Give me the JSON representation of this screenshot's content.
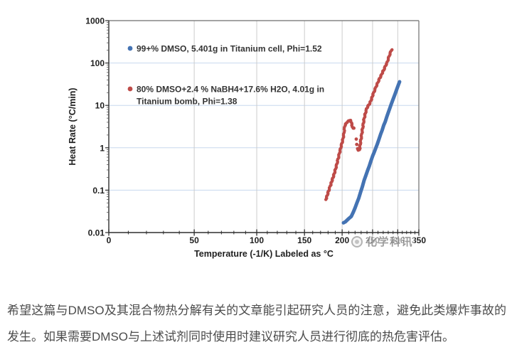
{
  "watermark": {
    "text": "化学科讯"
  },
  "caption": {
    "text": "希望这篇与DMSO及其混合物热分解有关的文章能引起研究人员的注意，避免此类爆炸事故的发生。如果需要DMSO与上述试剂同时使用时建议研究人员进行彻底的热危害评估。"
  },
  "chart_data": {
    "type": "scatter",
    "title": "",
    "xlabel": "Temperature (-1/K) Labeled as °C",
    "ylabel": "Heat Rate (°C/min)",
    "x_scale": "reciprocal-kelvin (-1/K), labeled in °C",
    "y_scale": "log10",
    "xlim": [
      0,
      350
    ],
    "ylim": [
      0.01,
      1000
    ],
    "x_major_ticks": [
      0,
      50,
      100,
      150,
      200,
      250,
      300,
      350
    ],
    "x_minor_step": 10,
    "y_tick_labels": [
      "1000",
      "100",
      "10",
      "1",
      "0.1",
      "0.01"
    ],
    "y_tick_values": [
      1000,
      100,
      10,
      1,
      0.1,
      0.01
    ],
    "grid": {
      "horizontal_color": "#c7d8ee",
      "vertical_color": "#cccccc"
    },
    "legend": [
      {
        "label": "99+% DMSO, 5.401g in Titanium cell, Phi=1.52",
        "color": "#4473B3"
      },
      {
        "line1": "80% DMSO+2.4 % NaBH4+17.6% H2O, 4.01g in",
        "line2": "Titanium bomb, Phi=1.38",
        "color": "#BE4B48"
      }
    ],
    "series": [
      {
        "name": "99+% DMSO, 5.401g in Titanium cell, Phi=1.52",
        "color": "#4473B3",
        "style": "thick-line",
        "points": [
          [
            202,
            0.017
          ],
          [
            205,
            0.018
          ],
          [
            208,
            0.02
          ],
          [
            211,
            0.022
          ],
          [
            214,
            0.024
          ],
          [
            217,
            0.03
          ],
          [
            220,
            0.038
          ],
          [
            223,
            0.05
          ],
          [
            226,
            0.065
          ],
          [
            229,
            0.089
          ],
          [
            232,
            0.12
          ],
          [
            235,
            0.17
          ],
          [
            238,
            0.22
          ],
          [
            241,
            0.29
          ],
          [
            244,
            0.37
          ],
          [
            247,
            0.49
          ],
          [
            250,
            0.64
          ],
          [
            253,
            0.79
          ],
          [
            256,
            1.0
          ],
          [
            259,
            1.25
          ],
          [
            262,
            1.6
          ],
          [
            265,
            2.1
          ],
          [
            268,
            2.6
          ],
          [
            271,
            3.4
          ],
          [
            274,
            4.1
          ],
          [
            277,
            5.3
          ],
          [
            280,
            6.7
          ],
          [
            283,
            8.4
          ],
          [
            286,
            10.6
          ],
          [
            290,
            13.9
          ],
          [
            294,
            18.3
          ],
          [
            298,
            24.1
          ],
          [
            302,
            31.7
          ],
          [
            304,
            36
          ]
        ]
      },
      {
        "name": "80% DMSO+2.4 % NaBH4+17.6% H2O, 4.01g in Titanium bomb, Phi=1.38",
        "color": "#BE4B48",
        "style": "dots",
        "segments": [
          {
            "dense": true,
            "points": [
              [
                177,
                0.06
              ],
              [
                178.5,
                0.072
              ],
              [
                180,
                0.088
              ],
              [
                181.5,
                0.105
              ],
              [
                183,
                0.125
              ],
              [
                184.5,
                0.15
              ],
              [
                186,
                0.18
              ],
              [
                187.5,
                0.215
              ],
              [
                189,
                0.26
              ],
              [
                190.5,
                0.32
              ],
              [
                192,
                0.4
              ],
              [
                193.5,
                0.5
              ],
              [
                195,
                0.63
              ],
              [
                196.5,
                0.8
              ],
              [
                198,
                1.0
              ],
              [
                199.5,
                1.25
              ],
              [
                201,
                1.55
              ],
              [
                202.5,
                2.1
              ],
              [
                204,
                3.3
              ],
              [
                205.5,
                3.65
              ],
              [
                207,
                3.95
              ],
              [
                208.5,
                4.15
              ],
              [
                210,
                4.3
              ],
              [
                211.2,
                4.4
              ],
              [
                212.4,
                4.45
              ],
              [
                213.4,
                4.3
              ],
              [
                214.2,
                3.85
              ],
              [
                215.2,
                3.4
              ],
              [
                216.2,
                2.9
              ]
            ]
          },
          {
            "dense": false,
            "points": [
              [
                218,
                2.9
              ],
              [
                221.9,
                1.6
              ],
              [
                222.8,
                1.2
              ],
              [
                224.2,
                0.95
              ],
              [
                225.2,
                0.88
              ]
            ]
          },
          {
            "dense": true,
            "points": [
              [
                227.3,
                0.9
              ],
              [
                228.8,
                1.3
              ],
              [
                230.3,
                1.8
              ],
              [
                231.8,
                2.5
              ],
              [
                233.3,
                3.4
              ],
              [
                234.8,
                4.6
              ],
              [
                236.3,
                5.8
              ],
              [
                237.8,
                7.0
              ],
              [
                239.4,
                8.3
              ],
              [
                241,
                9.3
              ],
              [
                243,
                10.2
              ],
              [
                245,
                11.2
              ],
              [
                247,
                13
              ],
              [
                249,
                15.5
              ],
              [
                251,
                18.5
              ],
              [
                253,
                21.5
              ],
              [
                255,
                25
              ],
              [
                257,
                29
              ],
              [
                259,
                33
              ],
              [
                261,
                38
              ],
              [
                263,
                43
              ],
              [
                265,
                48
              ],
              [
                267,
                54
              ],
              [
                269,
                62
              ],
              [
                271,
                68
              ],
              [
                273,
                78
              ],
              [
                275,
                88
              ],
              [
                277,
                97
              ],
              [
                279,
                115
              ],
              [
                281,
                135
              ],
              [
                283,
                158
              ],
              [
                285,
                182
              ],
              [
                286.2,
                198
              ],
              [
                287.2,
                206
              ]
            ]
          }
        ]
      }
    ],
    "annotations": {
      "blue_onset": "≈202 °C at 0.017 °C/min rising to ≈36 °C/min at ≈304 °C",
      "red_onset": "≈177 °C at 0.06 °C/min, local peak ≈4.4 °C/min at ≈212 °C, dip to ≈0.9, second rise to ≈206 °C/min at ≈287 °C"
    }
  }
}
